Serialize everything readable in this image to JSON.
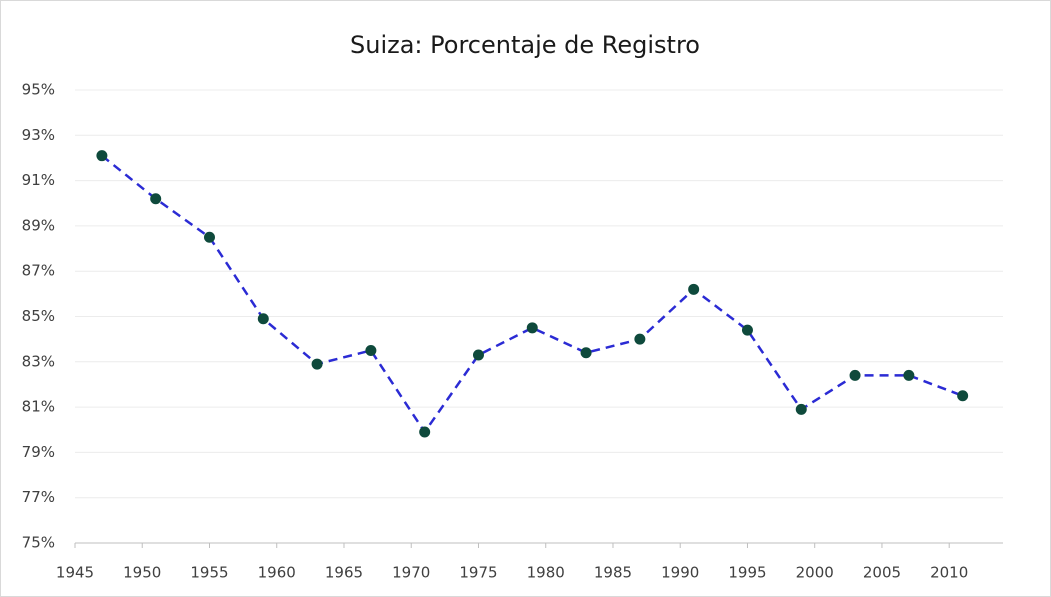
{
  "chart_data": {
    "type": "line",
    "title": "Suiza: Porcentaje de Registro",
    "x": [
      1947,
      1951,
      1955,
      1959,
      1963,
      1967,
      1971,
      1975,
      1979,
      1983,
      1987,
      1991,
      1995,
      1999,
      2003,
      2007,
      2011
    ],
    "values": [
      92.1,
      90.2,
      88.5,
      84.9,
      82.9,
      83.5,
      79.9,
      83.3,
      84.5,
      83.4,
      84.0,
      86.2,
      84.4,
      80.9,
      82.4,
      82.4,
      81.5
    ],
    "color": "#2b2bd4",
    "marker_color": "#0f4a3c",
    "line_style": "dashed",
    "xlim": [
      1945,
      2014
    ],
    "xticks": [
      1945,
      1950,
      1955,
      1960,
      1965,
      1970,
      1975,
      1980,
      1985,
      1990,
      1995,
      2000,
      2005,
      2010
    ],
    "ylim": [
      75,
      95
    ],
    "yticks": [
      {
        "value": 75,
        "label": "75%"
      },
      {
        "value": 77,
        "label": "77%"
      },
      {
        "value": 79,
        "label": "79%"
      },
      {
        "value": 81,
        "label": "81%"
      },
      {
        "value": 83,
        "label": "83%"
      },
      {
        "value": 85,
        "label": "85%"
      },
      {
        "value": 87,
        "label": "87%"
      },
      {
        "value": 89,
        "label": "89%"
      },
      {
        "value": 91,
        "label": "91%"
      },
      {
        "value": 93,
        "label": "93%"
      },
      {
        "value": 95,
        "label": "95%"
      }
    ],
    "grid": true
  }
}
